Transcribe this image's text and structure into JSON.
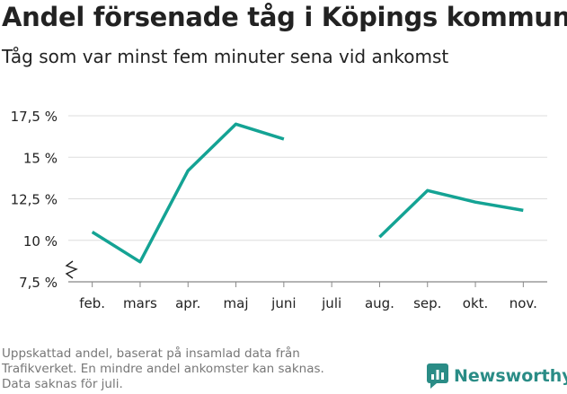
{
  "title": "Andel försenade tåg i Köpings kommun",
  "subtitle": "Tåg som var minst fem minuter sena vid ankomst",
  "footnote": [
    "Uppskattad andel, baserat på insamlad data från",
    "Trafikverket. En mindre andel ankomster kan saknas.",
    "Data saknas för juli."
  ],
  "brand": "Newsworthy",
  "colors": {
    "line": "#14a394",
    "grid": "#dddddd",
    "text": "#222222",
    "muted": "#777777",
    "brand": "#2a8c86"
  },
  "chart_data": {
    "type": "line",
    "categories": [
      "feb.",
      "mars",
      "apr.",
      "maj",
      "juni",
      "juli",
      "aug.",
      "sep.",
      "okt.",
      "nov."
    ],
    "series": [
      {
        "values": [
          10.5,
          8.7,
          14.2,
          17.0,
          16.1,
          null,
          10.2,
          13.0,
          12.3,
          11.8
        ]
      }
    ],
    "yticks": [
      7.5,
      10,
      12.5,
      15,
      17.5
    ],
    "ytick_labels": [
      "7,5 %",
      "10 %",
      "12,5 %",
      "15 %",
      "17,5 %"
    ],
    "ylim": [
      7.5,
      17.5
    ],
    "y_axis_break": true,
    "grid": true,
    "xlabel": "",
    "ylabel": ""
  }
}
